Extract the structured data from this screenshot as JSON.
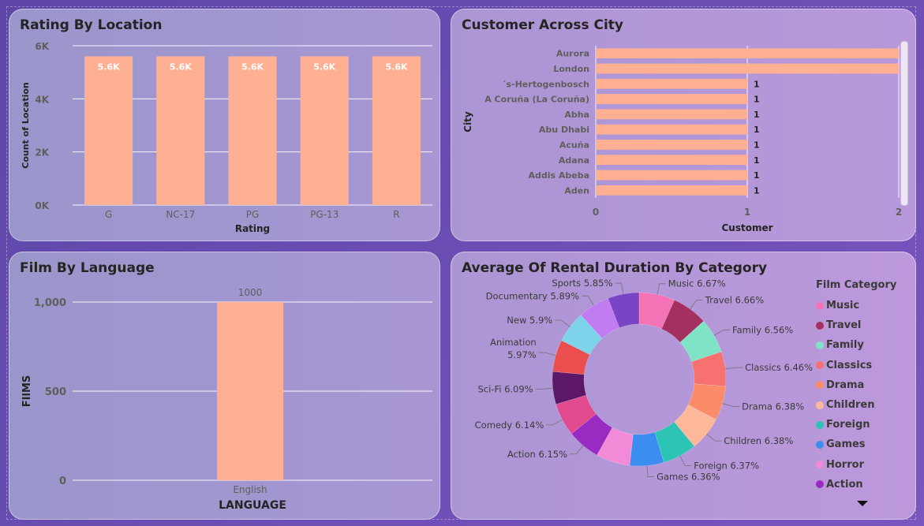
{
  "charts": {
    "rating": {
      "title": "Rating By Location"
    },
    "city": {
      "title": "Customer Across City"
    },
    "language": {
      "title": "Film By Language"
    },
    "rental": {
      "title": "Average Of Rental Duration By Category",
      "legend_title": "Film Category"
    }
  },
  "colors": {
    "bar": "#ffb093"
  },
  "chart_data": [
    {
      "type": "bar",
      "title": "Rating By Location",
      "categories": [
        "G",
        "NC-17",
        "PG",
        "PG-13",
        "R"
      ],
      "values": [
        5600,
        5600,
        5600,
        5600,
        5600
      ],
      "data_labels": [
        "5.6K",
        "5.6K",
        "5.6K",
        "5.6K",
        "5.6K"
      ],
      "xlabel": "Rating",
      "ylabel": "Count of Location",
      "ylim": [
        0,
        6000
      ],
      "yticks": [
        0,
        2000,
        4000,
        6000
      ],
      "ytick_labels": [
        "0K",
        "2K",
        "4K",
        "6K"
      ],
      "grid": true
    },
    {
      "type": "bar",
      "orientation": "horizontal",
      "title": "Customer Across City",
      "categories": [
        "Aurora",
        "London",
        "´s-Hertogenbosch",
        "A Coruña (La Coruña)",
        "Abha",
        "Abu Dhabi",
        "Acuña",
        "Adana",
        "Addis Abeba",
        "Aden"
      ],
      "values": [
        2,
        2,
        1,
        1,
        1,
        1,
        1,
        1,
        1,
        1
      ],
      "data_labels": [
        "",
        "",
        "1",
        "1",
        "1",
        "1",
        "1",
        "1",
        "1",
        "1"
      ],
      "xlabel": "Customer",
      "ylabel": "City",
      "xlim": [
        0,
        2
      ],
      "xticks": [
        0,
        1,
        2
      ],
      "grid": true
    },
    {
      "type": "bar",
      "title": "Film By Language",
      "categories": [
        "English"
      ],
      "values": [
        1000
      ],
      "data_labels": [
        "1000"
      ],
      "xlabel": "LANGUAGE",
      "ylabel": "FIlMS",
      "ylim": [
        0,
        1000
      ],
      "yticks": [
        0,
        500,
        1000
      ],
      "ytick_labels": [
        "0",
        "500",
        "1,000"
      ],
      "grid": true
    },
    {
      "type": "pie",
      "donut": true,
      "title": "Average Of Rental Duration By Category",
      "legend_title": "Film Category",
      "legend_position": "right",
      "slices": [
        {
          "name": "Music",
          "value": 6.67,
          "label": "Music 6.67%",
          "color": "#f472b6"
        },
        {
          "name": "Travel",
          "value": 6.66,
          "label": "Travel 6.66%",
          "color": "#a3305f"
        },
        {
          "name": "Family",
          "value": 6.56,
          "label": "Family 6.56%",
          "color": "#7fe3c6"
        },
        {
          "name": "Classics",
          "value": 6.46,
          "label": "Classics 6.46%",
          "color": "#f87171"
        },
        {
          "name": "Drama",
          "value": 6.38,
          "label": "Drama 6.38%",
          "color": "#fb8c6a"
        },
        {
          "name": "Children",
          "value": 6.38,
          "label": "Children 6.38%",
          "color": "#ffb99a"
        },
        {
          "name": "Foreign",
          "value": 6.37,
          "label": "Foreign 6.37%",
          "color": "#2cc4b4"
        },
        {
          "name": "Games",
          "value": 6.36,
          "label": "Games 6.36%",
          "color": "#3b8df0"
        },
        {
          "name": "Horror",
          "value": 6.35,
          "label": "",
          "color": "#f38ad8"
        },
        {
          "name": "Action",
          "value": 6.15,
          "label": "Action 6.15%",
          "color": "#9a2bc2"
        },
        {
          "name": "Comedy",
          "value": 6.14,
          "label": "Comedy 6.14%",
          "color": "#e14a8e"
        },
        {
          "name": "Sci-Fi",
          "value": 6.09,
          "label": "Sci-Fi 6.09%",
          "color": "#5c1768"
        },
        {
          "name": "Animation",
          "value": 5.97,
          "label": "Animation 5.97%",
          "color": "#ea4e4e"
        },
        {
          "name": "New",
          "value": 5.9,
          "label": "New 5.9%",
          "color": "#7dd3ea"
        },
        {
          "name": "Documentary",
          "value": 5.89,
          "label": "Documentary 5.89%",
          "color": "#c07cf0"
        },
        {
          "name": "Sports",
          "value": 5.85,
          "label": "Sports 5.85%",
          "color": "#7a45c4"
        }
      ],
      "legend_items": [
        "Music",
        "Travel",
        "Family",
        "Classics",
        "Drama",
        "Children",
        "Foreign",
        "Games",
        "Horror",
        "Action"
      ]
    }
  ]
}
